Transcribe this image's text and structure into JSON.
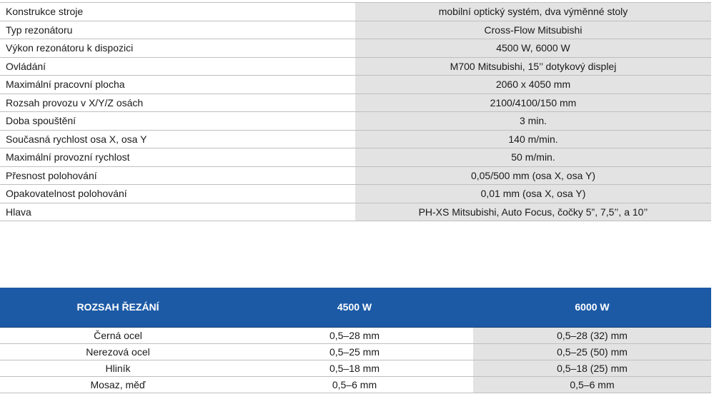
{
  "specs": [
    {
      "label": "Konstrukce stroje",
      "value": "mobilní optický systém, dva výměnné stoly"
    },
    {
      "label": "Typ rezonátoru",
      "value": "Cross-Flow Mitsubishi"
    },
    {
      "label": "Výkon rezonátoru k dispozici",
      "value": "4500 W, 6000 W"
    },
    {
      "label": "Ovládání",
      "value": "M700 Mitsubishi, 15’’ dotykový displej"
    },
    {
      "label": "Maximální pracovní plocha",
      "value": "2060 x 4050 mm"
    },
    {
      "label": "Rozsah provozu v X/Y/Z osách",
      "value": "2100/4100/150 mm"
    },
    {
      "label": "Doba spouštění",
      "value": "3 min."
    },
    {
      "label": "Současná rychlost osa X, osa Y",
      "value": "140 m/min."
    },
    {
      "label": "Maximální provozní rychlost",
      "value": "50 m/min."
    },
    {
      "label": "Přesnost polohování",
      "value": "0,05/500 mm (osa X, osa Y)"
    },
    {
      "label": "Opakovatelnost polohování",
      "value": "0,01 mm (osa X, osa Y)"
    },
    {
      "label": "Hlava",
      "value": "PH-XS Mitsubishi, Auto Focus, čočky 5”, 7,5’’, a 10’’"
    }
  ],
  "cutting": {
    "headers": [
      "ROZSAH ŘEZÁNÍ",
      "4500 W",
      "6000 W"
    ],
    "rows": [
      {
        "material": "Černá ocel",
        "w4500": "0,5–28 mm",
        "w6000": "0,5–28 (32) mm"
      },
      {
        "material": "Nerezová ocel",
        "w4500": "0,5–25 mm",
        "w6000": "0,5–25 (50) mm"
      },
      {
        "material": "Hliník",
        "w4500": "0,5–18 mm",
        "w6000": "0,5–18 (25) mm"
      },
      {
        "material": "Mosaz, měď",
        "w4500": "0,5–6 mm",
        "w6000": "0,5–6 mm"
      }
    ]
  },
  "colors": {
    "header_blue": "#1c5aa6",
    "value_gray": "#e3e3e3",
    "row_border": "#bfbfbf"
  }
}
